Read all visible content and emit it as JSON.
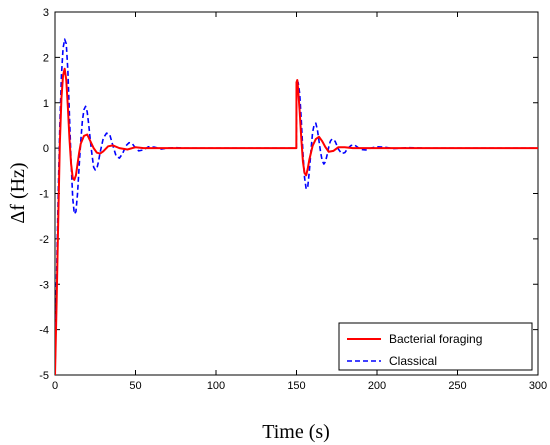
{
  "chart_data": {
    "type": "line",
    "title": "",
    "xlabel": "Time (s)",
    "ylabel": "Δf (Hz)",
    "xlim": [
      0,
      300
    ],
    "ylim": [
      -5,
      3
    ],
    "xticks": [
      0,
      50,
      100,
      150,
      200,
      250,
      300
    ],
    "yticks": [
      -5,
      -4,
      -3,
      -2,
      -1,
      0,
      1,
      2,
      3
    ],
    "grid": false,
    "legend": {
      "placement": "bottom-right"
    },
    "series": [
      {
        "name": "Bacterial foraging",
        "color": "#ff0000",
        "style": "solid",
        "x": [
          0,
          1,
          2,
          3,
          4,
          5,
          6,
          7,
          8,
          9,
          10,
          11,
          12,
          13,
          14,
          15,
          16,
          18,
          20,
          22,
          24,
          26,
          28,
          30,
          33,
          36,
          40,
          45,
          50,
          55,
          60,
          70,
          80,
          100,
          120,
          140,
          149.9,
          150,
          150.5,
          151,
          152,
          153,
          154,
          155,
          156,
          157,
          158,
          160,
          162,
          164,
          166,
          168,
          170,
          173,
          176,
          180,
          185,
          190,
          200,
          220,
          250,
          300
        ],
        "y": [
          -5,
          -3.4,
          -1.6,
          0.1,
          1.1,
          1.6,
          1.75,
          1.5,
          0.9,
          0.2,
          -0.35,
          -0.65,
          -0.7,
          -0.6,
          -0.35,
          -0.1,
          0.1,
          0.27,
          0.3,
          0.15,
          0.0,
          -0.1,
          -0.12,
          -0.07,
          0.04,
          0.06,
          0.0,
          -0.03,
          0.02,
          0.0,
          0.0,
          0.0,
          0.0,
          0.0,
          0.0,
          0.0,
          0.0,
          1.45,
          1.5,
          1.3,
          0.8,
          0.2,
          -0.3,
          -0.55,
          -0.6,
          -0.45,
          -0.25,
          0.05,
          0.2,
          0.25,
          0.15,
          0.02,
          -0.08,
          -0.06,
          0.02,
          0.02,
          0.0,
          0.0,
          0.0,
          0.0,
          0.0,
          0.0
        ]
      },
      {
        "name": "Classical",
        "color": "#0000ff",
        "style": "dashed",
        "x": [
          0,
          1,
          2,
          3,
          4,
          5,
          6,
          7,
          8,
          9,
          10,
          11,
          12,
          13,
          14,
          15,
          16,
          17,
          18,
          19,
          20,
          21,
          22,
          23,
          24,
          25,
          26,
          27,
          28,
          30,
          32,
          34,
          36,
          38,
          40,
          42,
          44,
          46,
          48,
          50,
          52,
          55,
          58,
          62,
          66,
          70,
          75,
          80,
          100,
          120,
          140,
          149.9,
          150,
          151,
          152,
          153,
          154,
          155,
          156,
          157,
          158,
          159,
          160,
          161,
          162,
          163,
          164,
          165,
          166,
          167,
          168,
          169,
          170,
          171,
          172,
          174,
          176,
          178,
          180,
          182,
          184,
          186,
          188,
          190,
          193,
          196,
          200,
          205,
          210,
          215,
          220,
          230,
          250,
          300
        ],
        "y": [
          -5,
          -2.8,
          -1.0,
          0.5,
          1.6,
          2.2,
          2.4,
          2.3,
          1.7,
          0.7,
          -0.3,
          -1.1,
          -1.45,
          -1.4,
          -1.0,
          -0.4,
          0.15,
          0.6,
          0.85,
          0.92,
          0.8,
          0.5,
          0.15,
          -0.15,
          -0.42,
          -0.48,
          -0.45,
          -0.3,
          -0.1,
          0.22,
          0.33,
          0.3,
          0.05,
          -0.18,
          -0.22,
          -0.12,
          0.05,
          0.12,
          0.1,
          0.0,
          -0.06,
          -0.04,
          0.03,
          0.02,
          -0.02,
          0.0,
          0.01,
          0.0,
          0.0,
          0.0,
          0.0,
          0.0,
          1.3,
          1.45,
          1.2,
          0.6,
          -0.1,
          -0.65,
          -0.9,
          -0.85,
          -0.5,
          -0.05,
          0.35,
          0.52,
          0.55,
          0.4,
          0.15,
          -0.1,
          -0.28,
          -0.35,
          -0.3,
          -0.15,
          0.02,
          0.15,
          0.2,
          0.15,
          -0.02,
          -0.12,
          -0.1,
          0.0,
          0.06,
          0.07,
          0.02,
          -0.03,
          -0.04,
          0.0,
          0.03,
          0.02,
          -0.01,
          0.0,
          0.01,
          0.0,
          0.0,
          0.0
        ]
      }
    ]
  }
}
